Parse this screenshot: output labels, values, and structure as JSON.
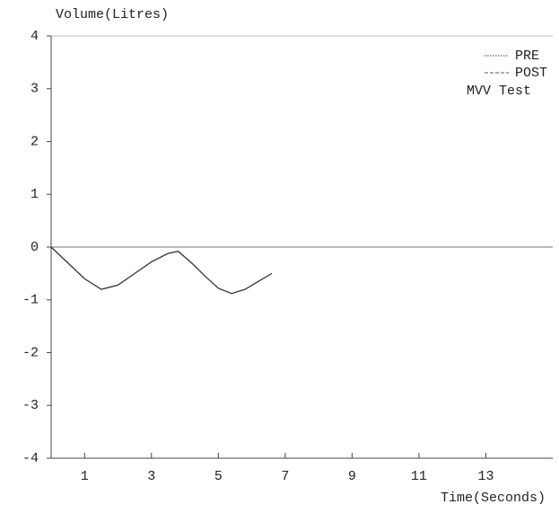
{
  "chart_data": {
    "type": "line",
    "y_label": "Volume(Litres)",
    "x_label": "Time(Seconds)",
    "annotation": "MVV Test",
    "x": [
      0,
      0.5,
      1,
      1.5,
      2,
      2.5,
      3,
      3.5,
      3.8,
      4.2,
      4.6,
      5,
      5.4,
      5.8,
      6.2,
      6.6
    ],
    "series": [
      {
        "name": "PRE",
        "color": "#333333",
        "values": [
          0,
          -0.3,
          -0.6,
          -0.8,
          -0.72,
          -0.5,
          -0.28,
          -0.12,
          -0.08,
          -0.3,
          -0.55,
          -0.78,
          -0.88,
          -0.8,
          -0.65,
          -0.5
        ]
      },
      {
        "name": "POST",
        "color": "#555555",
        "values": [
          null,
          null,
          null,
          null,
          null,
          null,
          null,
          null,
          null,
          null,
          null,
          null,
          null,
          null,
          null,
          null
        ]
      }
    ],
    "xlim": [
      0,
      15
    ],
    "xticks": [
      1,
      3,
      5,
      7,
      9,
      11,
      13
    ],
    "ylim": [
      -4,
      4
    ],
    "yticks": [
      -4,
      -3,
      -2,
      -1,
      0,
      1,
      2,
      3,
      4
    ],
    "legend": "upper right"
  }
}
